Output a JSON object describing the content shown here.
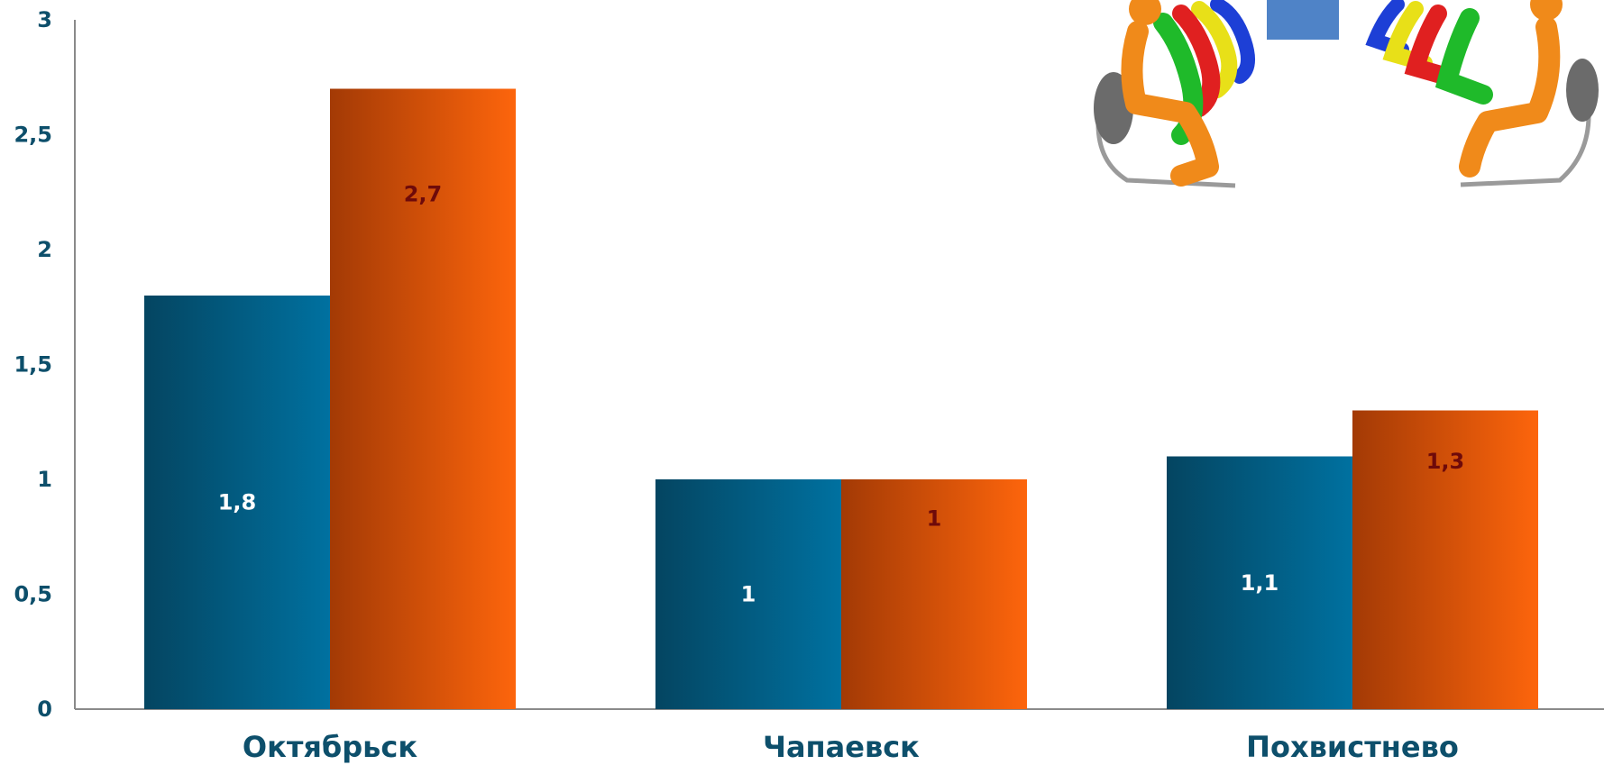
{
  "chart_data": {
    "type": "bar",
    "categories": [
      "Октябрьск",
      "Чапаевск",
      "Похвистнево"
    ],
    "series": [
      {
        "values": [
          1.8,
          1,
          1.1
        ],
        "labels": [
          "1,8",
          "1",
          "1,1"
        ],
        "color_dark": "#044561",
        "color_light": "#0071a0",
        "label_color": "#ffffff"
      },
      {
        "values": [
          2.7,
          1,
          1.3
        ],
        "labels": [
          "2,7",
          "1",
          "1,3"
        ],
        "color_dark": "#a33a05",
        "color_light": "#fd650c",
        "label_color": "#6e0a0a"
      }
    ],
    "yticks": [
      "0",
      "0,5",
      "1",
      "1,5",
      "2",
      "2,5",
      "3"
    ],
    "ylim": [
      0,
      3
    ],
    "grid": false,
    "legend": "none",
    "xlabel": "",
    "ylabel": "",
    "title": ""
  },
  "decoration": {
    "image": "people-sitting-in-chairs-clipart-icon"
  }
}
